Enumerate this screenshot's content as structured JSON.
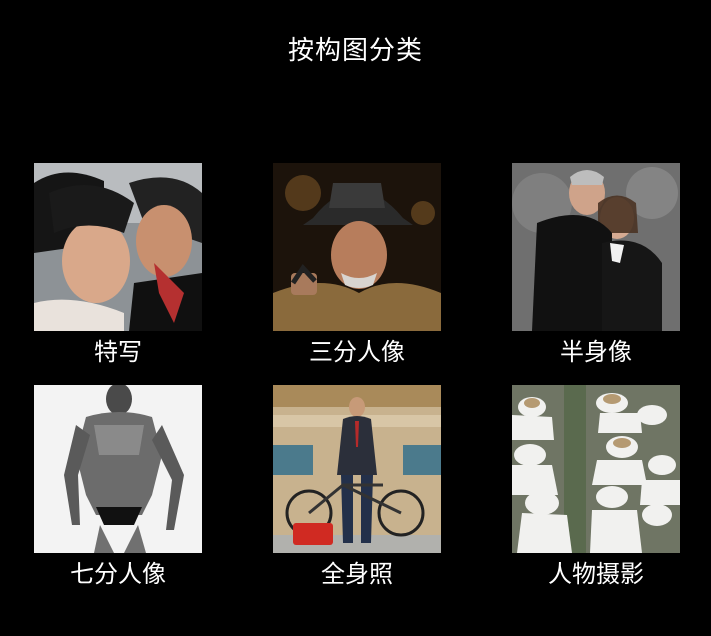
{
  "page": {
    "title": "按构图分类"
  },
  "categories": [
    {
      "label": "特写"
    },
    {
      "label": "三分人像"
    },
    {
      "label": "半身像"
    },
    {
      "label": "七分人像"
    },
    {
      "label": "全身照"
    },
    {
      "label": "人物摄影"
    }
  ]
}
